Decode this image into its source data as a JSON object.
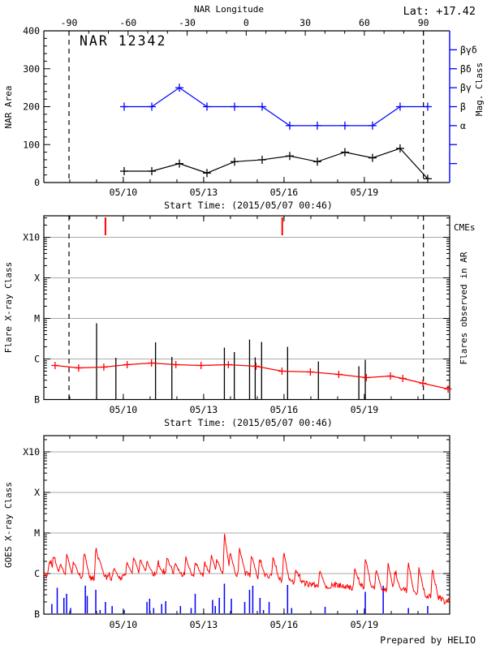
{
  "page": {
    "lat_label": "Lat: +17.42",
    "credit": "Prepared by HELIO"
  },
  "colors": {
    "black": "#000000",
    "blue": "#0000ff",
    "red": "#ff0000",
    "grid": "#aaaaaa"
  },
  "chart_data": {
    "type": "line",
    "title": "NAR 12342",
    "start_time_label": "Start Time: (2015/05/07 00:46)",
    "time_axis": {
      "range_days": [
        0,
        15.15
      ],
      "major_ticks": [
        {
          "t": 2.966,
          "label": "05/10"
        },
        {
          "t": 5.966,
          "label": "05/13"
        },
        {
          "t": 8.966,
          "label": "05/16"
        },
        {
          "t": 11.966,
          "label": "05/19"
        }
      ],
      "minor_tick_offset_days": 0.968,
      "minor_tick_count": 14
    },
    "panels": [
      {
        "id": "nar_area",
        "title": "NAR 12342",
        "ylabel": "NAR Area",
        "ylim": [
          0,
          400
        ],
        "ytick_labels": [
          "0",
          "100",
          "200",
          "300",
          "400"
        ],
        "ytick_step": 100,
        "yminor_step": 20,
        "top_axis": {
          "label": "NAR Longitude",
          "tick_labels": [
            "-90",
            "-60",
            "-30",
            "0",
            "30",
            "60",
            "90"
          ],
          "tick_days": [
            0.94,
            3.145,
            5.35,
            7.555,
            9.76,
            11.965,
            14.17
          ],
          "minor_step_deg": 10
        },
        "right_axis": {
          "label": "Mag. Class",
          "tick_values": [
            50,
            100,
            150,
            200,
            250,
            300,
            350
          ],
          "tick_labels": [
            "",
            "",
            "α",
            "β",
            "βγ",
            "βδ",
            "βγδ"
          ]
        },
        "limb_crossings_t": [
          0.94,
          14.17
        ],
        "series": [
          {
            "name": "NAR area",
            "color": "#000000",
            "t": [
              3.0,
              4.03,
              5.06,
              6.09,
              7.12,
              8.15,
              9.18,
              10.21,
              11.24,
              12.27,
              13.3,
              14.33
            ],
            "v": [
              30,
              30,
              50,
              25,
              55,
              60,
              70,
              55,
              80,
              65,
              90,
              10
            ]
          },
          {
            "name": "Magnetic class",
            "color": "#0000ff",
            "t": [
              3.0,
              4.03,
              5.06,
              6.09,
              7.12,
              8.15,
              9.18,
              10.21,
              11.24,
              12.27,
              13.3,
              14.33
            ],
            "v": [
              200,
              200,
              250,
              200,
              200,
              200,
              150,
              150,
              150,
              150,
              200,
              200
            ],
            "class_labels": [
              "β",
              "β",
              "βγ",
              "β",
              "β",
              "β",
              "α",
              "α",
              "α",
              "α",
              "β",
              "β"
            ]
          }
        ]
      },
      {
        "id": "flares",
        "ylabel": "Flare X-ray Class",
        "ylim_log": [
          -7,
          -2.47
        ],
        "yticks": [
          {
            "log": -3,
            "label": "X10"
          },
          {
            "log": -4,
            "label": "X"
          },
          {
            "log": -5,
            "label": "M"
          },
          {
            "log": -6,
            "label": "C"
          },
          {
            "log": -7,
            "label": "B"
          }
        ],
        "right_label_cmes": "CMEs",
        "right_label_flares": "Flares observed in AR",
        "cme_times_t": [
          2.3,
          8.9
        ],
        "flares": [
          {
            "t": 1.97,
            "peak_log": -5.12
          },
          {
            "t": 2.69,
            "peak_log": -5.97
          },
          {
            "t": 4.17,
            "peak_log": -5.59
          },
          {
            "t": 4.78,
            "peak_log": -5.95
          },
          {
            "t": 6.74,
            "peak_log": -5.72
          },
          {
            "t": 7.11,
            "peak_log": -5.83
          },
          {
            "t": 7.68,
            "peak_log": -5.52
          },
          {
            "t": 7.89,
            "peak_log": -5.96
          },
          {
            "t": 8.13,
            "peak_log": -5.58
          },
          {
            "t": 9.1,
            "peak_log": -5.7
          },
          {
            "t": 10.25,
            "peak_log": -6.06
          },
          {
            "t": 11.76,
            "peak_log": -6.18
          },
          {
            "t": 12.0,
            "peak_log": -6.02
          }
        ],
        "background_series": {
          "name": "daily mean flare level",
          "color": "#ff0000",
          "t": [
            0.42,
            1.3,
            2.24,
            3.11,
            4.02,
            4.93,
            5.87,
            6.89,
            7.92,
            8.89,
            9.95,
            11.01,
            12.04,
            12.94,
            13.4,
            14.15,
            15.09
          ],
          "log": [
            -6.16,
            -6.22,
            -6.2,
            -6.14,
            -6.1,
            -6.14,
            -6.16,
            -6.14,
            -6.18,
            -6.3,
            -6.32,
            -6.38,
            -6.46,
            -6.42,
            -6.48,
            -6.6,
            -6.74
          ]
        },
        "limb_crossings_t": [
          0.94,
          14.17
        ]
      },
      {
        "id": "goes",
        "ylabel": "GOES X-ray Class",
        "ylim_log": [
          -7,
          -2.6
        ],
        "yticks": [
          {
            "log": -3,
            "label": "X10"
          },
          {
            "log": -4,
            "label": "X"
          },
          {
            "log": -5,
            "label": "M"
          },
          {
            "log": -6,
            "label": "C"
          },
          {
            "log": -7,
            "label": "B"
          }
        ],
        "flux_baseline": [
          [
            0,
            -6.05
          ],
          [
            0.3,
            -5.98
          ],
          [
            0.8,
            -6.08
          ],
          [
            1.2,
            -6.02
          ],
          [
            1.7,
            -6.12
          ],
          [
            2.2,
            -6.08
          ],
          [
            2.7,
            -6.12
          ],
          [
            3.2,
            -6.05
          ],
          [
            3.7,
            -6.0
          ],
          [
            4.2,
            -6.02
          ],
          [
            4.7,
            -5.98
          ],
          [
            5.2,
            -6.05
          ],
          [
            5.7,
            -6.02
          ],
          [
            6.2,
            -6.05
          ],
          [
            6.7,
            -6.0
          ],
          [
            7.2,
            -6.05
          ],
          [
            7.5,
            -5.98
          ],
          [
            8.0,
            -6.1
          ],
          [
            8.5,
            -6.05
          ],
          [
            9.0,
            -6.18
          ],
          [
            9.5,
            -6.22
          ],
          [
            10.0,
            -6.28
          ],
          [
            10.5,
            -6.32
          ],
          [
            11.0,
            -6.28
          ],
          [
            11.5,
            -6.35
          ],
          [
            12.0,
            -6.3
          ],
          [
            12.5,
            -6.38
          ],
          [
            13.0,
            -6.45
          ],
          [
            13.3,
            -6.38
          ],
          [
            13.8,
            -6.5
          ],
          [
            14.3,
            -6.55
          ],
          [
            14.8,
            -6.6
          ],
          [
            15.0,
            -6.72
          ],
          [
            15.15,
            -6.62
          ]
        ],
        "flux_spikes": [
          [
            0.2,
            -5.7
          ],
          [
            0.35,
            -5.55
          ],
          [
            0.6,
            -5.75
          ],
          [
            0.85,
            -5.5
          ],
          [
            1.1,
            -5.7
          ],
          [
            1.5,
            -5.45
          ],
          [
            1.94,
            -5.3
          ],
          [
            2.05,
            -5.6
          ],
          [
            2.6,
            -5.85
          ],
          [
            3.1,
            -5.7
          ],
          [
            3.35,
            -5.6
          ],
          [
            3.6,
            -5.65
          ],
          [
            3.85,
            -5.7
          ],
          [
            4.25,
            -5.75
          ],
          [
            4.6,
            -5.6
          ],
          [
            4.9,
            -5.75
          ],
          [
            5.3,
            -5.6
          ],
          [
            5.65,
            -5.7
          ],
          [
            6.0,
            -5.75
          ],
          [
            6.25,
            -5.55
          ],
          [
            6.45,
            -5.65
          ],
          [
            6.74,
            -5.02
          ],
          [
            6.95,
            -5.45
          ],
          [
            7.3,
            -5.35
          ],
          [
            7.75,
            -5.55
          ],
          [
            8.05,
            -5.65
          ],
          [
            8.55,
            -5.6
          ],
          [
            8.95,
            -5.45
          ],
          [
            9.4,
            -5.9
          ],
          [
            10.3,
            -5.9
          ],
          [
            11.6,
            -5.85
          ],
          [
            12.0,
            -5.6
          ],
          [
            12.4,
            -5.9
          ],
          [
            12.85,
            -5.75
          ],
          [
            13.1,
            -5.95
          ],
          [
            13.6,
            -5.7
          ],
          [
            14.0,
            -5.85
          ],
          [
            14.5,
            -5.9
          ]
        ],
        "noise_log_amplitude": 0.14,
        "event_spikes_blue": [
          [
            0.3,
            -6.75
          ],
          [
            0.5,
            -6.35
          ],
          [
            0.75,
            -6.6
          ],
          [
            0.85,
            -6.5
          ],
          [
            1.0,
            -6.85
          ],
          [
            1.55,
            -6.3
          ],
          [
            1.62,
            -6.55
          ],
          [
            1.94,
            -6.4
          ],
          [
            2.1,
            -6.9
          ],
          [
            2.3,
            -6.7
          ],
          [
            2.55,
            -6.8
          ],
          [
            3.0,
            -6.9
          ],
          [
            3.85,
            -6.7
          ],
          [
            3.95,
            -6.62
          ],
          [
            4.1,
            -6.85
          ],
          [
            4.4,
            -6.75
          ],
          [
            4.55,
            -6.68
          ],
          [
            5.1,
            -6.8
          ],
          [
            5.5,
            -6.85
          ],
          [
            5.65,
            -6.5
          ],
          [
            6.3,
            -6.65
          ],
          [
            6.4,
            -6.8
          ],
          [
            6.55,
            -6.6
          ],
          [
            6.74,
            -6.25
          ],
          [
            7.0,
            -6.62
          ],
          [
            7.5,
            -6.7
          ],
          [
            7.68,
            -6.4
          ],
          [
            7.8,
            -6.3
          ],
          [
            8.07,
            -6.6
          ],
          [
            8.2,
            -6.9
          ],
          [
            8.41,
            -6.7
          ],
          [
            9.1,
            -6.28
          ],
          [
            9.25,
            -6.85
          ],
          [
            10.5,
            -6.82
          ],
          [
            11.7,
            -6.9
          ],
          [
            12.0,
            -6.45
          ],
          [
            12.67,
            -6.3
          ],
          [
            13.61,
            -6.85
          ],
          [
            14.33,
            -6.8
          ]
        ]
      }
    ]
  }
}
